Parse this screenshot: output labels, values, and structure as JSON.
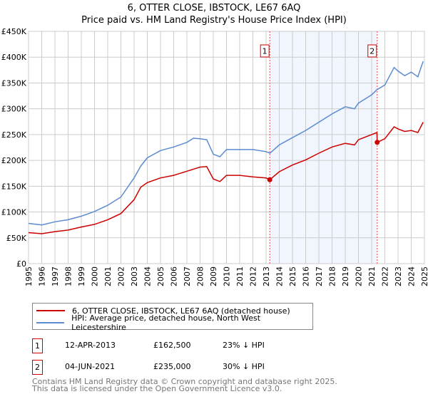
{
  "chart_data": {
    "type": "line",
    "title": "6, OTTER CLOSE, IBSTOCK, LE67 6AQ",
    "subtitle": "Price paid vs. HM Land Registry's House Price Index (HPI)",
    "xlabel": "",
    "ylabel": "",
    "xlim": [
      1995,
      2025
    ],
    "ylim": [
      0,
      450000
    ],
    "grid": true,
    "y_ticks": [
      0,
      50000,
      100000,
      150000,
      200000,
      250000,
      300000,
      350000,
      400000,
      450000
    ],
    "y_tick_labels": [
      "£0",
      "£50K",
      "£100K",
      "£150K",
      "£200K",
      "£250K",
      "£300K",
      "£350K",
      "£400K",
      "£450K"
    ],
    "x_ticks": [
      1995,
      1996,
      1997,
      1998,
      1999,
      2000,
      2001,
      2002,
      2003,
      2004,
      2005,
      2006,
      2007,
      2008,
      2009,
      2010,
      2011,
      2012,
      2013,
      2014,
      2015,
      2016,
      2017,
      2018,
      2019,
      2020,
      2021,
      2022,
      2023,
      2024,
      2025
    ],
    "x_tick_labels": [
      "1995",
      "1996",
      "1997",
      "1998",
      "1999",
      "2000",
      "2001",
      "2002",
      "2003",
      "2004",
      "2005",
      "2006",
      "2007",
      "2008",
      "2009",
      "2010",
      "2011",
      "2012",
      "2013",
      "2014",
      "2015",
      "2016",
      "2017",
      "2018",
      "2019",
      "2020",
      "2021",
      "2022",
      "2023",
      "2024",
      "2025"
    ],
    "shaded_range": [
      2013.28,
      2021.42
    ],
    "series": [
      {
        "name": "6, OTTER CLOSE, IBSTOCK, LE67 6AQ (detached house)",
        "color": "#cc0000",
        "x": [
          1995,
          1996,
          1997,
          1998,
          1999,
          2000,
          2001,
          2002,
          2003,
          2003.5,
          2004,
          2005,
          2006,
          2007,
          2008,
          2008.5,
          2009,
          2009.5,
          2010,
          2011,
          2012,
          2013,
          2013.28,
          2014,
          2015,
          2016,
          2017,
          2018,
          2019,
          2019.7,
          2020,
          2021,
          2021.4,
          2021.42,
          2022,
          2022.7,
          2023,
          2023.5,
          2024,
          2024.5,
          2024.9
        ],
        "y": [
          60000,
          58000,
          62000,
          65000,
          71000,
          76000,
          85000,
          97000,
          124000,
          148000,
          157000,
          166000,
          171000,
          179000,
          187000,
          188000,
          164000,
          159000,
          171000,
          171000,
          168000,
          166000,
          162500,
          178000,
          191000,
          201000,
          214000,
          226000,
          233000,
          230000,
          240000,
          250000,
          254000,
          235000,
          242000,
          265000,
          261000,
          256000,
          258000,
          254000,
          274000
        ]
      },
      {
        "name": "HPI: Average price, detached house, North West Leicestershire",
        "color": "#5b8bd0",
        "x": [
          1995,
          1996,
          1997,
          1998,
          1999,
          2000,
          2001,
          2002,
          2003,
          2003.5,
          2004,
          2005,
          2006,
          2007,
          2007.5,
          2008,
          2008.5,
          2009,
          2009.5,
          2010,
          2011,
          2012,
          2013,
          2013.3,
          2014,
          2015,
          2016,
          2017,
          2018,
          2019,
          2019.7,
          2020,
          2021,
          2021.4,
          2022,
          2022.7,
          2023,
          2023.5,
          2024,
          2024.5,
          2024.9
        ],
        "y": [
          78000,
          75000,
          81000,
          85000,
          92000,
          101000,
          113000,
          129000,
          166000,
          189000,
          205000,
          219000,
          226000,
          235000,
          243000,
          242000,
          240000,
          212000,
          207000,
          221000,
          221000,
          221000,
          217000,
          214000,
          230000,
          244000,
          258000,
          274000,
          290000,
          304000,
          300000,
          311000,
          327000,
          337000,
          346000,
          380000,
          373000,
          364000,
          371000,
          362000,
          392000
        ]
      }
    ],
    "annotations": [
      {
        "label": "1",
        "x": 2013.28,
        "y": 162500
      },
      {
        "label": "2",
        "x": 2021.42,
        "y": 235000
      }
    ]
  },
  "legend": {
    "items": [
      "6, OTTER CLOSE, IBSTOCK, LE67 6AQ (detached house)",
      "HPI: Average price, detached house, North West Leicestershire"
    ]
  },
  "transactions": [
    {
      "num": "1",
      "date": "12-APR-2013",
      "price": "£162,500",
      "hpi": "23% ↓ HPI"
    },
    {
      "num": "2",
      "date": "04-JUN-2021",
      "price": "£235,000",
      "hpi": "30% ↓ HPI"
    }
  ],
  "footer": {
    "line1": "Contains HM Land Registry data © Crown copyright and database right 2025.",
    "line2": "This data is licensed under the Open Government Licence v3.0."
  }
}
